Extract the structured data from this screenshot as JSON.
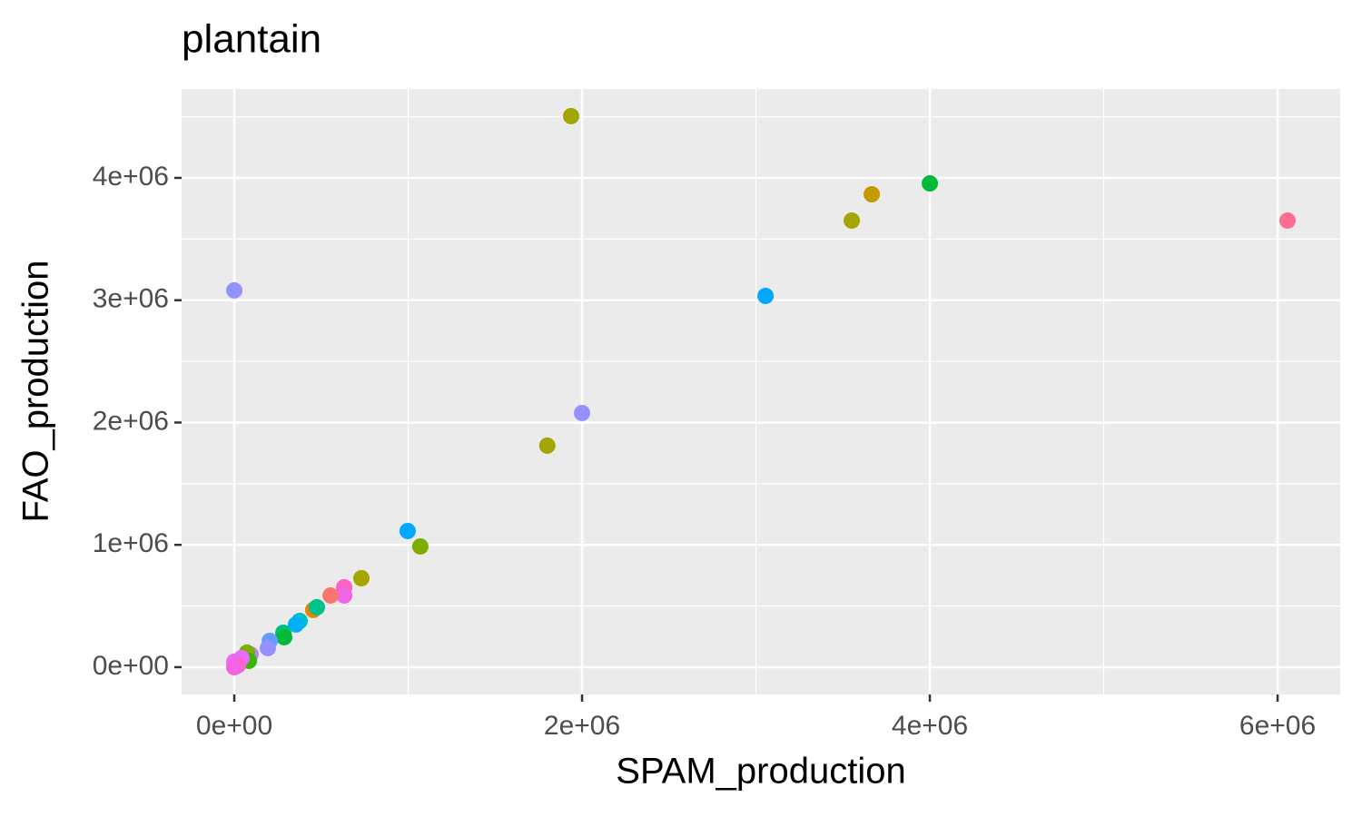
{
  "chart_data": {
    "type": "scatter",
    "title": "plantain",
    "x_label": "SPAM_production",
    "y_label": "FAO_production",
    "x": [
      1937000,
      4000000,
      3666000,
      3551000,
      6057000,
      0,
      3055000,
      2000000,
      1800000,
      997000,
      1070000,
      731000,
      632000,
      632000,
      554000,
      454000,
      475000,
      376000,
      355000,
      282000,
      287000,
      204000,
      193000,
      94000,
      73000,
      84000,
      42000,
      0,
      0,
      21000,
      0
    ],
    "y": [
      4505000,
      3955000,
      3866000,
      3651000,
      3651000,
      3080000,
      3035000,
      2078000,
      1811000,
      1113000,
      987000,
      727000,
      653000,
      586000,
      586000,
      468000,
      490000,
      378000,
      349000,
      282000,
      245000,
      215000,
      156000,
      104000,
      119000,
      52000,
      74000,
      45000,
      0,
      15000,
      0
    ],
    "colors": [
      "#a3a500",
      "#00ba38",
      "#c49a00",
      "#a3a500",
      "#ff6c91",
      "#9590ff",
      "#00a9ff",
      "#9590ff",
      "#a3a500",
      "#00a9ff",
      "#7cae00",
      "#a3a500",
      "#ff61c3",
      "#f066ea",
      "#f8766d",
      "#e58700",
      "#00c08b",
      "#00bfc4",
      "#00b0f6",
      "#00bf7d",
      "#00ba38",
      "#619cff",
      "#9590ff",
      "#b983ff",
      "#7cae00",
      "#39b600",
      "#e76bf3",
      "#e76bf3",
      "#ff62bc",
      "#fd61d1",
      "#f564e3"
    ],
    "xlim": [
      -303000,
      6360000
    ],
    "ylim": [
      -223000,
      4727000
    ],
    "xticks": [
      {
        "value": 0,
        "label": "0e+00"
      },
      {
        "value": 2000000,
        "label": "2e+06"
      },
      {
        "value": 4000000,
        "label": "4e+06"
      },
      {
        "value": 6000000,
        "label": "6e+06"
      }
    ],
    "yticks": [
      {
        "value": 0,
        "label": "0e+00"
      },
      {
        "value": 1000000,
        "label": "1e+06"
      },
      {
        "value": 2000000,
        "label": "2e+06"
      },
      {
        "value": 3000000,
        "label": "3e+06"
      },
      {
        "value": 4000000,
        "label": "4e+06"
      }
    ],
    "xminor": [
      1000000,
      3000000,
      5000000
    ],
    "yminor": [
      500000,
      1500000,
      2500000,
      3500000,
      4500000
    ],
    "grid": true
  }
}
